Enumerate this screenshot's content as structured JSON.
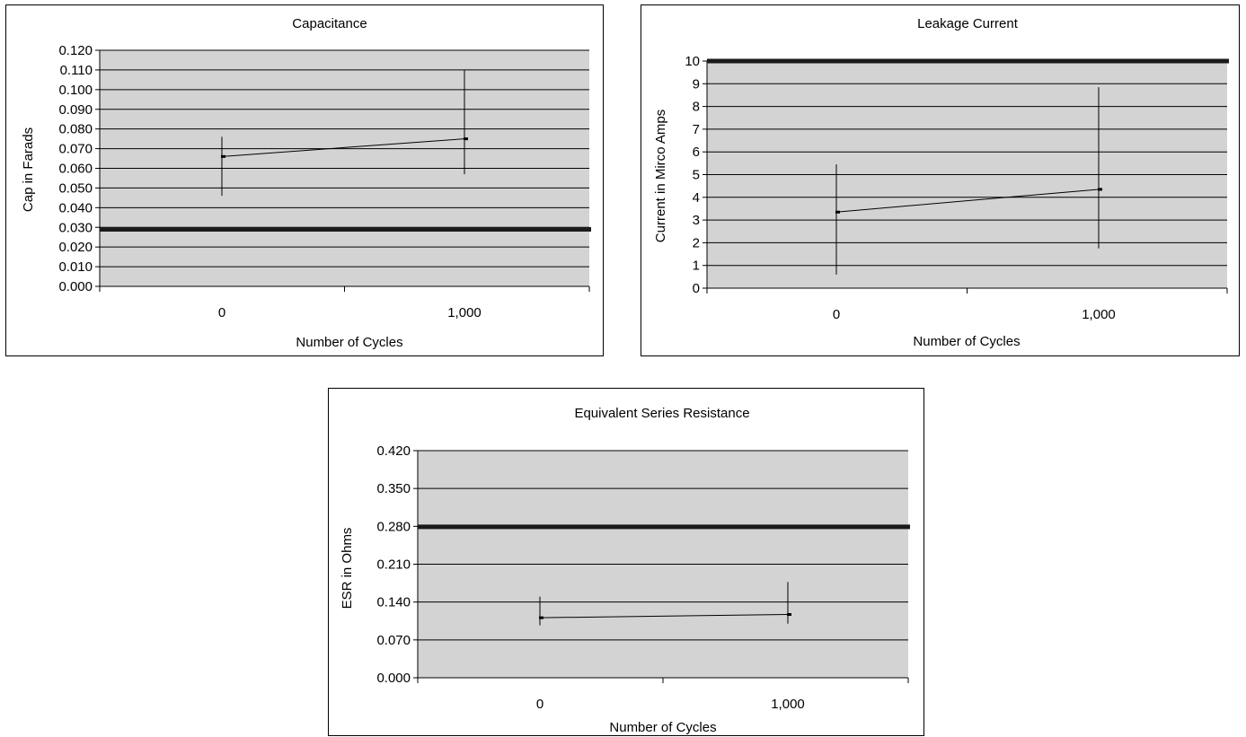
{
  "chart_data": [
    {
      "type": "line",
      "title": "Capacitance",
      "xlabel": "Number of Cycles",
      "ylabel": "Cap in Farads",
      "categories": [
        "0",
        "1,000"
      ],
      "ylim": [
        0,
        0.12
      ],
      "yticks": [
        "0.000",
        "0.010",
        "0.020",
        "0.030",
        "0.040",
        "0.050",
        "0.060",
        "0.070",
        "0.080",
        "0.090",
        "0.100",
        "0.110",
        "0.120"
      ],
      "series": [
        {
          "values": [
            0.066,
            0.075
          ],
          "error_low": [
            0.046,
            0.057
          ],
          "error_high": [
            0.076,
            0.11
          ]
        }
      ],
      "reference_line": 0.029,
      "grid": true,
      "plot_background": "#d3d3d3"
    },
    {
      "type": "line",
      "title": "Leakage Current",
      "xlabel": "Number of Cycles",
      "ylabel": "Current in Mirco Amps",
      "categories": [
        "0",
        "1,000"
      ],
      "ylim": [
        0,
        10
      ],
      "yticks": [
        "0",
        "1",
        "2",
        "3",
        "4",
        "5",
        "6",
        "7",
        "8",
        "9",
        "10"
      ],
      "series": [
        {
          "values": [
            3.35,
            4.35
          ],
          "error_low": [
            0.6,
            1.75
          ],
          "error_high": [
            5.45,
            8.85
          ]
        }
      ],
      "reference_line": 10,
      "grid": true,
      "plot_background": "#d3d3d3"
    },
    {
      "type": "line",
      "title": "Equivalent Series Resistance",
      "xlabel": "Number of Cycles",
      "ylabel": "ESR in Ohms",
      "categories": [
        "0",
        "1,000"
      ],
      "ylim": [
        0,
        0.42
      ],
      "yticks": [
        "0.000",
        "0.070",
        "0.140",
        "0.210",
        "0.280",
        "0.350",
        "0.420"
      ],
      "series": [
        {
          "values": [
            0.111,
            0.117
          ],
          "error_low": [
            0.097,
            0.1
          ],
          "error_high": [
            0.15,
            0.177
          ]
        }
      ],
      "reference_line": 0.279,
      "grid": true,
      "plot_background": "#d3d3d3"
    }
  ]
}
